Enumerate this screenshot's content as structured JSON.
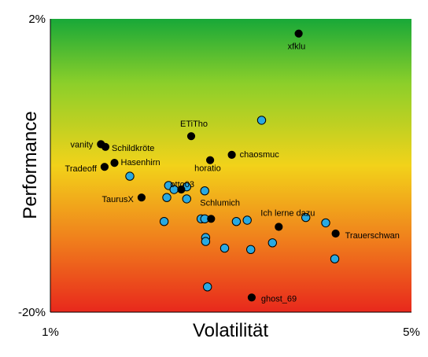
{
  "chart_data": {
    "type": "scatter",
    "title": "",
    "xlabel": "Volatilität",
    "ylabel": "Performance",
    "xlim": [
      1,
      5
    ],
    "ylim": [
      -20,
      2
    ],
    "x_ticks": [
      "1%",
      "5%"
    ],
    "y_ticks": [
      "-20%",
      "2%"
    ],
    "grid": false,
    "legend": "none",
    "background": "vertical gradient green (top) to yellow to red (bottom)",
    "colors": {
      "gradient_top": "#18a838",
      "gradient_upper": "#8ccf2a",
      "gradient_mid": "#f2d21a",
      "gradient_lower": "#f0801c",
      "gradient_bottom": "#e8281c",
      "labeled_marker": "#000000",
      "unlabeled_marker": "#29a9e1",
      "marker_outline": "#000000"
    },
    "series": [
      {
        "marker_color": "#000000",
        "points": [
          {
            "x": 3.75,
            "y": 0.9,
            "label": "xfklu"
          },
          {
            "x": 2.56,
            "y": -6.8,
            "label": "ETiTho"
          },
          {
            "x": 1.56,
            "y": -7.4,
            "label": "vanity"
          },
          {
            "x": 1.61,
            "y": -7.6,
            "label": "Schildkröte"
          },
          {
            "x": 3.01,
            "y": -8.2,
            "label": "chaosmuc"
          },
          {
            "x": 2.77,
            "y": -8.6,
            "label": "horatio"
          },
          {
            "x": 1.71,
            "y": -8.8,
            "label": "Hasenhirn"
          },
          {
            "x": 1.6,
            "y": -9.1,
            "label": "Tradeoff"
          },
          {
            "x": 2.45,
            "y": -10.8,
            "label": "otto03"
          },
          {
            "x": 2.01,
            "y": -11.4,
            "label": "TaurusX"
          },
          {
            "x": 2.78,
            "y": -13.0,
            "label": "Schlumich"
          },
          {
            "x": 3.53,
            "y": -13.6,
            "label": "Ich lerne dazu"
          },
          {
            "x": 4.16,
            "y": -14.1,
            "label": "Trauerschwan"
          },
          {
            "x": 3.23,
            "y": -18.9,
            "label": "ghost_69"
          }
        ]
      },
      {
        "marker_color": "#29a9e1",
        "points": [
          {
            "x": 3.34,
            "y": -5.6
          },
          {
            "x": 1.88,
            "y": -9.8
          },
          {
            "x": 2.31,
            "y": -10.5
          },
          {
            "x": 2.51,
            "y": -10.6
          },
          {
            "x": 2.37,
            "y": -10.8
          },
          {
            "x": 2.71,
            "y": -10.9
          },
          {
            "x": 2.29,
            "y": -11.4
          },
          {
            "x": 2.51,
            "y": -11.5
          },
          {
            "x": 2.67,
            "y": -13.0
          },
          {
            "x": 2.71,
            "y": -13.0
          },
          {
            "x": 2.26,
            "y": -13.2
          },
          {
            "x": 3.06,
            "y": -13.2
          },
          {
            "x": 3.18,
            "y": -13.1
          },
          {
            "x": 3.83,
            "y": -12.9
          },
          {
            "x": 4.05,
            "y": -13.3
          },
          {
            "x": 2.72,
            "y": -14.4
          },
          {
            "x": 2.72,
            "y": -14.7
          },
          {
            "x": 3.46,
            "y": -14.8
          },
          {
            "x": 2.93,
            "y": -15.2
          },
          {
            "x": 3.22,
            "y": -15.3
          },
          {
            "x": 4.15,
            "y": -16.0
          },
          {
            "x": 2.74,
            "y": -18.1
          }
        ]
      }
    ]
  }
}
